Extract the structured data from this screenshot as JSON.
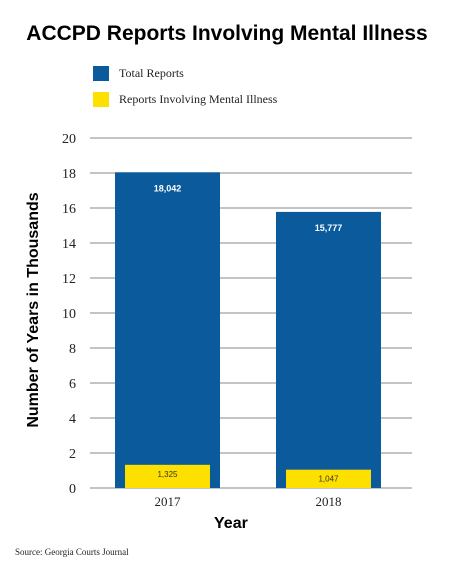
{
  "chart_data": {
    "type": "bar",
    "title": "ACCPD Reports Involving Mental Illness",
    "xlabel": "Year",
    "ylabel": "Number of Years in Thousands",
    "categories": [
      "2017",
      "2018"
    ],
    "series": [
      {
        "name": "Total Reports",
        "values": [
          18.042,
          15.777
        ],
        "labels": [
          "18,042",
          "15,777"
        ],
        "color": "#0b5a9c"
      },
      {
        "name": "Reports Involving Mental Illness",
        "values": [
          1.325,
          1.047
        ],
        "labels": [
          "1,325",
          "1,047"
        ],
        "color": "#fee000"
      }
    ],
    "ylim": [
      0,
      20
    ],
    "yticks": [
      "0",
      "2",
      "4",
      "6",
      "8",
      "10",
      "12",
      "14",
      "16",
      "18",
      "20"
    ],
    "grid": true,
    "legend_position": "top-left"
  },
  "source": "Source: Georgia Courts Journal"
}
